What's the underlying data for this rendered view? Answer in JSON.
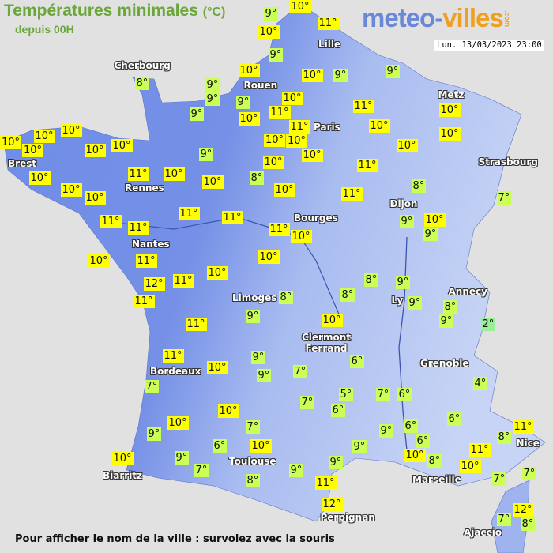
{
  "header": {
    "title": "Températures minimales",
    "unit": "(°C)",
    "subtitle": "depuis 00H",
    "logo_part1": "meteo-",
    "logo_part2": "villes",
    "logo_suffix": ".com",
    "datetime": "Lun. 13/03/2023 23:00"
  },
  "footer": {
    "hint": "Pour afficher le nom de la ville : survolez avec la souris"
  },
  "colors": {
    "warm_label": "#ffff00",
    "mild_label": "#ccff55",
    "cold_label": "#99ee99",
    "land": "#6f8de8",
    "title": "#6aa63a"
  },
  "cities": [
    "Cherbourg",
    "Rouen",
    "Lille",
    "Paris",
    "Metz",
    "Strasbourg",
    "Brest",
    "Rennes",
    "Dijon",
    "Bourges",
    "Nantes",
    "Annecy",
    "Limoges",
    "Ly",
    "Clermont Ferrand",
    "Grenoble",
    "Bordeaux",
    "Nice",
    "Toulouse",
    "Marseille",
    "Biarritz",
    "Perpignan",
    "Ajaccio"
  ],
  "temperatures": [
    "9°",
    "10°",
    "10°",
    "11°",
    "9°",
    "10°",
    "10°",
    "9°",
    "9°",
    "9°",
    "9°",
    "9°",
    "10°",
    "10°",
    "11°",
    "11°",
    "11°",
    "10°",
    "10°",
    "10°",
    "10°",
    "8°",
    "9°",
    "10°",
    "10°",
    "10°",
    "10°",
    "10°",
    "10°",
    "10°",
    "10°",
    "10°",
    "11°",
    "10°",
    "9°",
    "10°",
    "8°",
    "10°",
    "10°",
    "10°",
    "10°",
    "10°",
    "11°",
    "11°",
    "8°",
    "7°",
    "9°",
    "10°",
    "9°",
    "11°",
    "11°",
    "11°",
    "11°",
    "11°",
    "10°",
    "10°",
    "10°",
    "11°",
    "12°",
    "11°",
    "10°",
    "11°",
    "8°",
    "8°",
    "8°",
    "9°",
    "9°",
    "8°",
    "9°",
    "2°",
    "10°",
    "11°",
    "9°",
    "11°",
    "10°",
    "9°",
    "9°",
    "7°",
    "6°",
    "7°",
    "5°",
    "7°",
    "6°",
    "7°",
    "6°",
    "10°",
    "7°",
    "10°",
    "9°",
    "6°",
    "10°",
    "9°",
    "6°",
    "6°",
    "4°",
    "9°",
    "6°",
    "10°",
    "8°",
    "11°",
    "8°",
    "11°",
    "10°",
    "7°",
    "7°",
    "10°",
    "9°",
    "7°",
    "9°",
    "9°",
    "8°",
    "11°",
    "12°",
    "7°",
    "8°",
    "12°"
  ]
}
